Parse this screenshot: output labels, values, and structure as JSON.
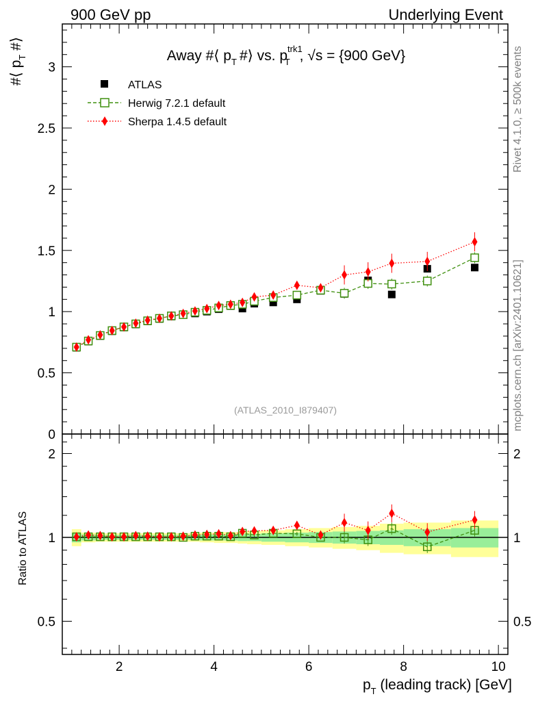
{
  "header": {
    "left": "900 GeV pp",
    "right": "Underlying Event"
  },
  "side_labels": {
    "rivet": "Rivet 4.1.0, ≥ 500k events",
    "mcplots": "mcplots.cern.ch [arXiv:2401.10621]"
  },
  "chart_data": [
    {
      "type": "scatter",
      "title": "Away #⟨ p_T #⟩ vs. p_T^trk1, √s = {900 GeV}",
      "title_parts": {
        "a": "Away #⟨ p",
        "sub1": "T",
        "b": "#⟩ vs. p",
        "sup": "trk1",
        "sub2": "T",
        "c": ", √s = {900 GeV}"
      },
      "ylabel_parts": {
        "a": "#⟨ p",
        "sub": "T",
        "b": " #⟩"
      },
      "xlabel": "p_T (leading track) [GeV]",
      "xlabel_parts": {
        "a": "p",
        "sub": "T",
        "b": " (leading track) [GeV]"
      },
      "xlim": [
        0.8,
        10.2
      ],
      "ylim": [
        0,
        3.35
      ],
      "yticks": [
        0,
        0.5,
        1,
        1.5,
        2,
        2.5,
        3
      ],
      "ytick_labels": [
        "0",
        "0.5",
        "1",
        "1.5",
        "2",
        "2.5",
        "3"
      ],
      "xticks": [
        2,
        4,
        6,
        8,
        10
      ],
      "xtick_labels": [
        "2",
        "4",
        "6",
        "8",
        "10"
      ],
      "watermark": "(ATLAS_2010_I879407)",
      "legend_position": "top-left",
      "x": [
        1.1,
        1.35,
        1.6,
        1.85,
        2.1,
        2.35,
        2.6,
        2.85,
        3.1,
        3.35,
        3.6,
        3.85,
        4.1,
        4.35,
        4.6,
        4.85,
        5.25,
        5.75,
        6.25,
        6.75,
        7.25,
        7.75,
        8.5,
        9.5
      ],
      "series": [
        {
          "name": "ATLAS",
          "color": "#000000",
          "marker": "square-filled",
          "values": [
            0.705,
            0.755,
            0.8,
            0.84,
            0.87,
            0.895,
            0.92,
            0.94,
            0.96,
            0.975,
            0.985,
            1.0,
            1.02,
            1.045,
            1.025,
            1.065,
            1.075,
            1.1,
            1.17,
            1.145,
            1.255,
            1.14,
            1.35,
            1.36
          ]
        },
        {
          "name": "Herwig 7.2.1 default",
          "color": "#3f8f0f",
          "marker": "square-open",
          "line": "dashed",
          "values": [
            0.71,
            0.76,
            0.805,
            0.845,
            0.875,
            0.9,
            0.925,
            0.945,
            0.965,
            0.975,
            0.995,
            1.01,
            1.03,
            1.05,
            1.06,
            1.085,
            1.115,
            1.135,
            1.175,
            1.15,
            1.23,
            1.225,
            1.25,
            1.44
          ]
        },
        {
          "name": "Sherpa 1.4.5 default",
          "color": "#ff0000",
          "marker": "diamond-filled",
          "line": "dotted",
          "values": [
            0.71,
            0.77,
            0.81,
            0.845,
            0.875,
            0.905,
            0.93,
            0.945,
            0.965,
            0.985,
            1.005,
            1.025,
            1.05,
            1.06,
            1.075,
            1.12,
            1.135,
            1.215,
            1.195,
            1.3,
            1.325,
            1.395,
            1.41,
            1.57
          ]
        }
      ]
    },
    {
      "type": "scatter",
      "title": "Ratio to ATLAS",
      "ylabel": "Ratio to ATLAS",
      "xlim": [
        0.8,
        10.2
      ],
      "ylim": [
        0.38,
        2.35
      ],
      "log_y": true,
      "yticks": [
        0.5,
        1,
        2
      ],
      "ytick_labels": [
        "0.5",
        "1",
        "2"
      ],
      "bin_edges": [
        1.0,
        1.2,
        1.5,
        1.7,
        2.0,
        2.2,
        2.5,
        2.7,
        3.0,
        3.2,
        3.5,
        3.7,
        4.0,
        4.2,
        4.5,
        4.7,
        5.0,
        5.5,
        6.0,
        6.5,
        7.0,
        7.5,
        8.0,
        9.0,
        10.0
      ],
      "band_stat_frac": [
        0.04,
        0.025,
        0.02,
        0.02,
        0.02,
        0.02,
        0.02,
        0.02,
        0.02,
        0.02,
        0.02,
        0.025,
        0.025,
        0.025,
        0.03,
        0.03,
        0.035,
        0.04,
        0.045,
        0.05,
        0.055,
        0.06,
        0.07,
        0.08
      ],
      "band_total_frac": [
        0.07,
        0.04,
        0.035,
        0.035,
        0.035,
        0.035,
        0.035,
        0.035,
        0.035,
        0.035,
        0.035,
        0.04,
        0.045,
        0.045,
        0.05,
        0.055,
        0.06,
        0.07,
        0.08,
        0.09,
        0.1,
        0.12,
        0.13,
        0.15
      ],
      "series": [
        {
          "name": "Herwig 7.2.1 default",
          "color": "#3f8f0f",
          "values": [
            1.005,
            1.005,
            1.005,
            1.005,
            1.005,
            1.005,
            1.005,
            1.005,
            1.005,
            1.0,
            1.01,
            1.01,
            1.01,
            1.005,
            1.035,
            1.02,
            1.035,
            1.03,
            1.0,
            1.0,
            0.98,
            1.075,
            0.925,
            1.06
          ]
        },
        {
          "name": "Sherpa 1.4.5 default",
          "color": "#ff0000",
          "values": [
            1.005,
            1.02,
            1.015,
            1.005,
            1.005,
            1.015,
            1.01,
            1.005,
            1.005,
            1.01,
            1.02,
            1.025,
            1.03,
            1.015,
            1.05,
            1.055,
            1.06,
            1.105,
            1.02,
            1.13,
            1.06,
            1.22,
            1.045,
            1.155
          ]
        }
      ]
    }
  ]
}
